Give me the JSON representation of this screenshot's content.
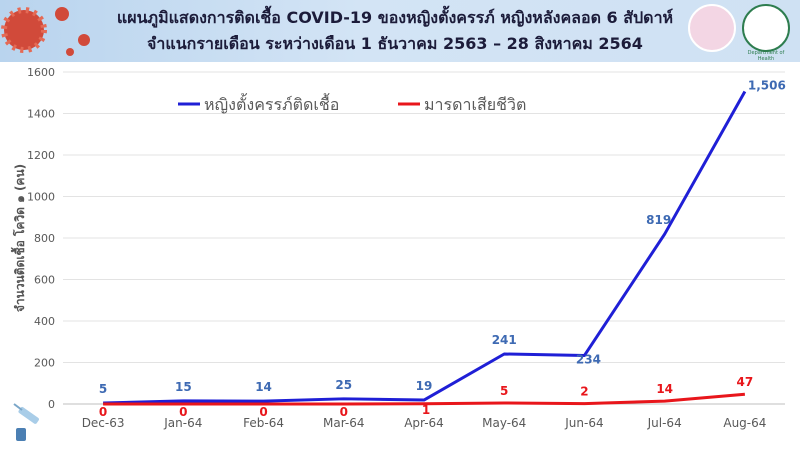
{
  "header": {
    "title_line1": "แผนภูมิแสดงการติดเชื้อ COVID-19 ของหญิงตั้งครรภ์ หญิงหลังคลอด 6 สัปดาห์",
    "title_line2": "จำแนกรายเดือน ระหว่างเดือน 1 ธันวาคม 2563 – 28 สิงหาคม 2564",
    "logo_caption": "Department of Health"
  },
  "chart_data": {
    "type": "line",
    "title": "แผนภูมิแสดงการติดเชื้อ COVID-19 ของหญิงตั้งครรภ์ หญิงหลังคลอด 6 สัปดาห์ จำแนกรายเดือน ระหว่างเดือน 1 ธันวาคม 2563 – 28 สิงหาคม 2564",
    "categories": [
      "Dec-63",
      "Jan-64",
      "Feb-64",
      "Mar-64",
      "Apr-64",
      "May-64",
      "Jun-64",
      "Jul-64",
      "Aug-64"
    ],
    "series": [
      {
        "name": "หญิงตั้งครรภ์ติดเชื้อ",
        "color": "#1f1fd6",
        "label_color": "#3e6ab3",
        "values": [
          5,
          15,
          14,
          25,
          19,
          241,
          234,
          819,
          1506
        ],
        "labels": [
          "5",
          "15",
          "14",
          "25",
          "19",
          "241",
          "234",
          "819",
          "1,506"
        ]
      },
      {
        "name": "มารดาเสียชีวิต",
        "color": "#e8161b",
        "label_color": "#e8161b",
        "values": [
          0,
          0,
          0,
          0,
          1,
          5,
          2,
          14,
          47
        ],
        "labels": [
          "0",
          "0",
          "0",
          "0",
          "1",
          "5",
          "2",
          "14",
          "47"
        ]
      }
    ],
    "ylabel": "จำนวนติดเชื้อ โควิด ๑ (คน)",
    "xlabel": "",
    "ylim": [
      0,
      1600
    ],
    "yticks": [
      0,
      200,
      400,
      600,
      800,
      1000,
      1200,
      1400,
      1600
    ],
    "grid": true,
    "legend": "top"
  }
}
